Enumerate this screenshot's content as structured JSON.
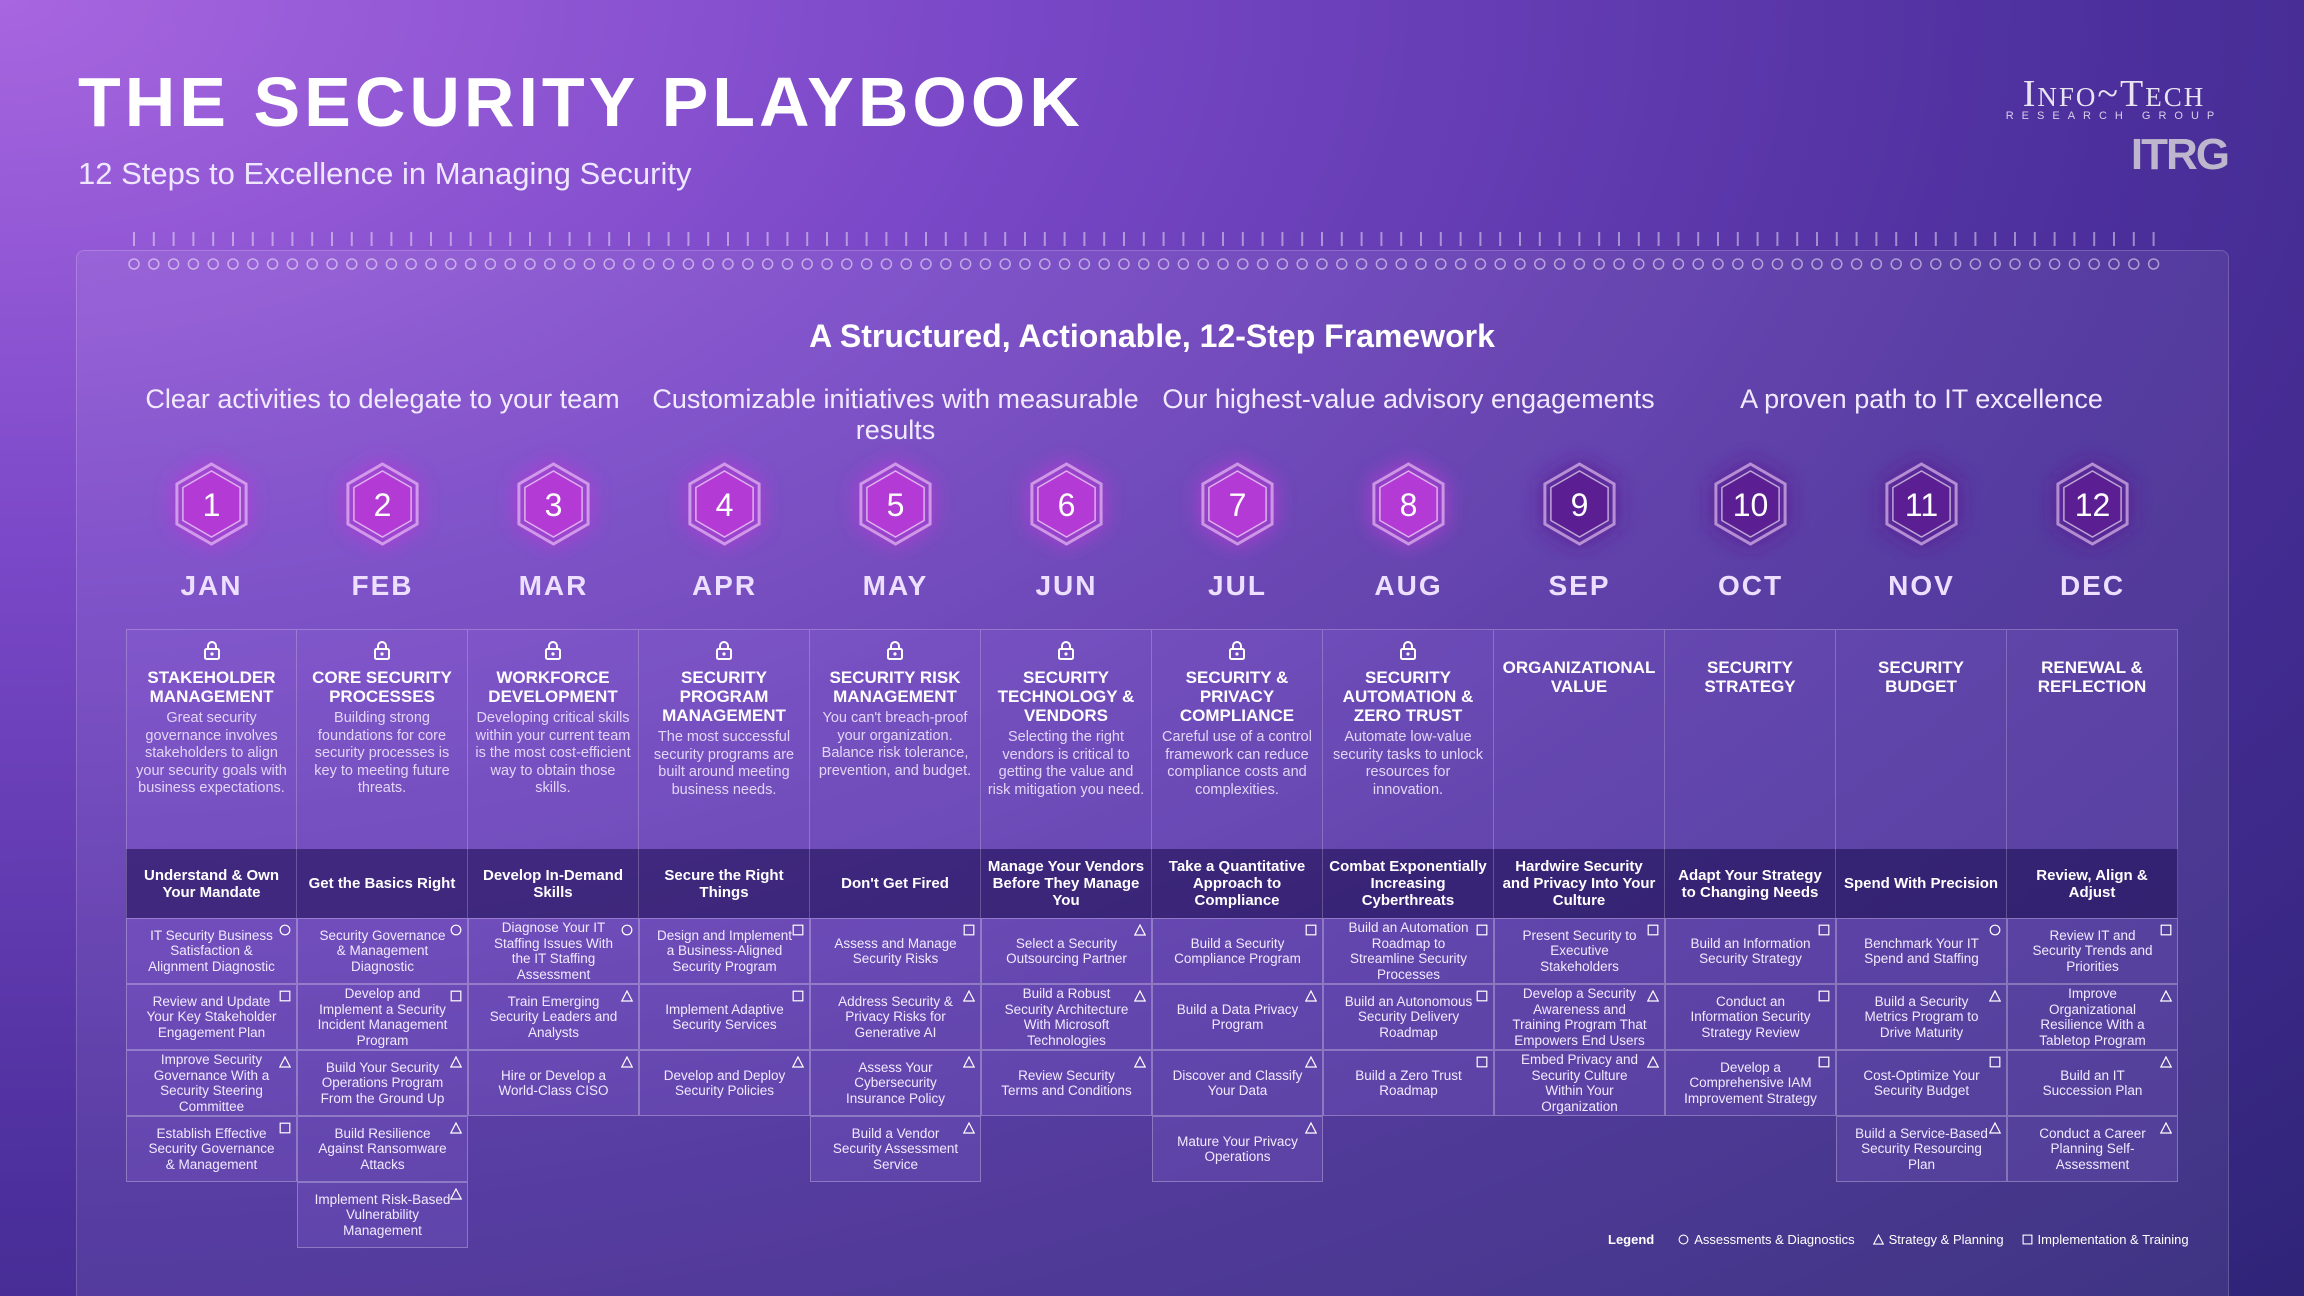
{
  "header": {
    "title": "THE SECURITY PLAYBOOK",
    "subtitle": "12 Steps to Excellence in Managing Security"
  },
  "logo": {
    "name": "Info~Tech",
    "tagline": "RESEARCH GROUP",
    "mark": "ITRG"
  },
  "framework": {
    "heading": "A Structured, Actionable, 12-Step Framework",
    "sections": [
      "Clear activities to delegate to your team",
      "Customizable initiatives with measurable results",
      "Our highest-value advisory engagements",
      "A proven path to IT excellence"
    ]
  },
  "months": [
    {
      "number": 1,
      "month": "JAN",
      "color": "#b43ad6",
      "locked": true,
      "title": "STAKEHOLDER MANAGEMENT",
      "description": "Great security governance involves stakeholders to align your security goals with business expectations.",
      "tagline": "Understand & Own Your Mandate",
      "activities": [
        {
          "text": "IT Security Business Satisfaction & Alignment Diagnostic",
          "icon": "circle"
        },
        {
          "text": "Review and Update Your Key Stakeholder Engagement Plan",
          "icon": "square"
        },
        {
          "text": "Improve Security Governance With a Security Steering Committee",
          "icon": "triangle"
        },
        {
          "text": "Establish Effective Security Governance & Management",
          "icon": "square"
        }
      ]
    },
    {
      "number": 2,
      "month": "FEB",
      "color": "#b43ad6",
      "locked": true,
      "title": "CORE SECURITY PROCESSES",
      "description": "Building strong foundations for core security processes is key to meeting future threats.",
      "tagline": "Get the Basics Right",
      "activities": [
        {
          "text": "Security Governance & Management Diagnostic",
          "icon": "circle"
        },
        {
          "text": "Develop and Implement a Security Incident Management Program",
          "icon": "square"
        },
        {
          "text": "Build Your Security Operations Program From the Ground Up",
          "icon": "triangle"
        },
        {
          "text": "Build Resilience Against Ransomware Attacks",
          "icon": "triangle"
        },
        {
          "text": "Implement Risk-Based Vulnerability Management",
          "icon": "triangle"
        }
      ]
    },
    {
      "number": 3,
      "month": "MAR",
      "color": "#b43ad6",
      "locked": true,
      "title": "WORKFORCE DEVELOPMENT",
      "description": "Developing critical skills within your current team is the most cost-efficient way to obtain those skills.",
      "tagline": "Develop In-Demand Skills",
      "activities": [
        {
          "text": "Diagnose Your IT Staffing Issues With the IT Staffing Assessment",
          "icon": "circle"
        },
        {
          "text": "Train Emerging Security Leaders and Analysts",
          "icon": "triangle"
        },
        {
          "text": "Hire or Develop a World-Class CISO",
          "icon": "triangle"
        }
      ]
    },
    {
      "number": 4,
      "month": "APR",
      "color": "#b43ad6",
      "locked": true,
      "title": "SECURITY PROGRAM MANAGEMENT",
      "description": "The most successful security programs are built around meeting business needs.",
      "tagline": "Secure the Right Things",
      "activities": [
        {
          "text": "Design and Implement a Business-Aligned Security Program",
          "icon": "square"
        },
        {
          "text": "Implement Adaptive Security Services",
          "icon": "square"
        },
        {
          "text": "Develop and Deploy Security Policies",
          "icon": "triangle"
        }
      ]
    },
    {
      "number": 5,
      "month": "MAY",
      "color": "#b43ad6",
      "locked": true,
      "title": "SECURITY RISK MANAGEMENT",
      "description": "You can't breach-proof your organization. Balance risk tolerance, prevention, and budget.",
      "tagline": "Don't Get Fired",
      "activities": [
        {
          "text": "Assess and Manage Security Risks",
          "icon": "square"
        },
        {
          "text": "Address Security & Privacy Risks for Generative AI",
          "icon": "triangle"
        },
        {
          "text": "Assess Your Cybersecurity Insurance Policy",
          "icon": "triangle"
        },
        {
          "text": "Build a Vendor Security Assessment Service",
          "icon": "triangle"
        }
      ]
    },
    {
      "number": 6,
      "month": "JUN",
      "color": "#b43ad6",
      "locked": true,
      "title": "SECURITY TECHNOLOGY & VENDORS",
      "description": "Selecting the right vendors is critical to getting the value and risk mitigation you need.",
      "tagline": "Manage Your Vendors Before They Manage You",
      "activities": [
        {
          "text": "Select a Security Outsourcing Partner",
          "icon": "triangle"
        },
        {
          "text": "Build a Robust Security Architecture With Microsoft Technologies",
          "icon": "triangle"
        },
        {
          "text": "Review Security Terms and Conditions",
          "icon": "triangle"
        }
      ]
    },
    {
      "number": 7,
      "month": "JUL",
      "color": "#b43ad6",
      "locked": true,
      "title": "SECURITY & PRIVACY COMPLIANCE",
      "description": "Careful use of a control framework can reduce compliance costs and complexities.",
      "tagline": "Take a Quantitative Approach to Compliance",
      "activities": [
        {
          "text": "Build a Security Compliance Program",
          "icon": "square"
        },
        {
          "text": "Build a Data Privacy Program",
          "icon": "triangle"
        },
        {
          "text": "Discover and Classify Your Data",
          "icon": "triangle"
        },
        {
          "text": "Mature Your Privacy Operations",
          "icon": "triangle"
        }
      ]
    },
    {
      "number": 8,
      "month": "AUG",
      "color": "#b43ad6",
      "locked": true,
      "title": "SECURITY AUTOMATION & ZERO TRUST",
      "description": "Automate low-value security tasks to unlock resources for innovation.",
      "tagline": "Combat Exponentially Increasing Cyberthreats",
      "activities": [
        {
          "text": "Build an Automation Roadmap to Streamline Security Processes",
          "icon": "square"
        },
        {
          "text": "Build an Autonomous Security Delivery Roadmap",
          "icon": "square"
        },
        {
          "text": "Build a Zero Trust Roadmap",
          "icon": "square"
        }
      ]
    },
    {
      "number": 9,
      "month": "SEP",
      "color": "#5b1f93",
      "locked": false,
      "title": "ORGANIZATIONAL VALUE",
      "tagline": "Hardwire Security and Privacy Into Your Culture",
      "activities": [
        {
          "text": "Present Security to Executive Stakeholders",
          "icon": "square"
        },
        {
          "text": "Develop a Security Awareness and Training Program That Empowers End Users",
          "icon": "triangle"
        },
        {
          "text": "Embed Privacy and Security Culture Within Your Organization",
          "icon": "triangle"
        }
      ]
    },
    {
      "number": 10,
      "month": "OCT",
      "color": "#5b1f93",
      "locked": false,
      "title": "SECURITY STRATEGY",
      "tagline": "Adapt Your Strategy to Changing Needs",
      "activities": [
        {
          "text": "Build an Information Security Strategy",
          "icon": "square"
        },
        {
          "text": "Conduct an Information Security Strategy Review",
          "icon": "square"
        },
        {
          "text": "Develop a Comprehensive IAM Improvement Strategy",
          "icon": "square"
        }
      ]
    },
    {
      "number": 11,
      "month": "NOV",
      "color": "#5b1f93",
      "locked": false,
      "title": "SECURITY BUDGET",
      "tagline": "Spend With Precision",
      "activities": [
        {
          "text": "Benchmark Your IT Spend and Staffing",
          "icon": "circle"
        },
        {
          "text": "Build a Security Metrics Program to Drive Maturity",
          "icon": "triangle"
        },
        {
          "text": "Cost-Optimize Your Security Budget",
          "icon": "square"
        },
        {
          "text": "Build a Service-Based Security Resourcing Plan",
          "icon": "triangle"
        }
      ]
    },
    {
      "number": 12,
      "month": "DEC",
      "color": "#5b1f93",
      "locked": false,
      "title": "RENEWAL & REFLECTION",
      "tagline": "Review, Align & Adjust",
      "activities": [
        {
          "text": "Review IT and Security Trends and Priorities",
          "icon": "square"
        },
        {
          "text": "Improve Organizational Resilience With a Tabletop Program",
          "icon": "triangle"
        },
        {
          "text": "Build an IT Succession Plan",
          "icon": "triangle"
        },
        {
          "text": "Conduct a Career Planning Self-Assessment",
          "icon": "triangle"
        }
      ]
    }
  ],
  "legend": {
    "title": "Legend",
    "items": [
      {
        "icon": "circle",
        "label": "Assessments & Diagnostics"
      },
      {
        "icon": "triangle",
        "label": "Strategy & Planning"
      },
      {
        "icon": "square",
        "label": "Implementation & Training"
      }
    ]
  }
}
